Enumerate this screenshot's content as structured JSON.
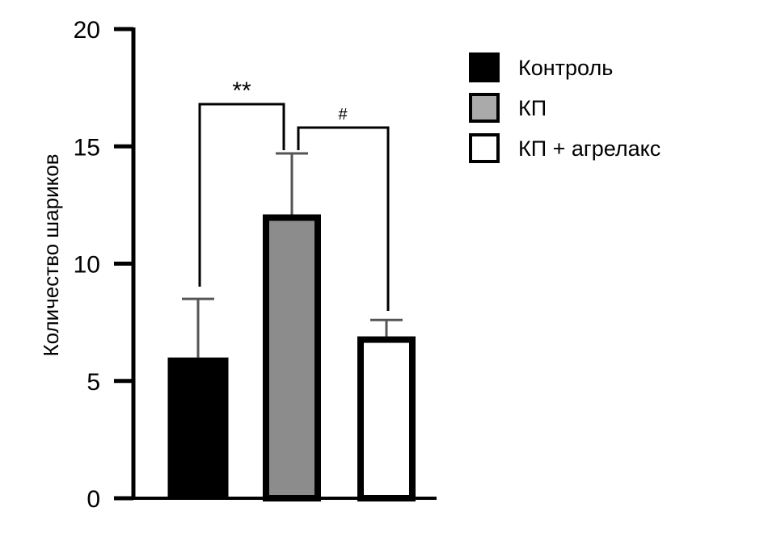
{
  "chart_data": {
    "type": "bar",
    "title": "",
    "xlabel": "",
    "ylabel": "Количество шариков",
    "ylim": [
      0,
      20
    ],
    "yticks": [
      0,
      5,
      10,
      15,
      20
    ],
    "grid": false,
    "legend_placement": "top-right",
    "categories": [
      "Контроль",
      "КП",
      "КП + агрелакс"
    ],
    "values": [
      6.0,
      12.1,
      6.9
    ],
    "error_upper": [
      8.5,
      14.7,
      7.6
    ],
    "colors": [
      "#000000",
      "#8c8c8c",
      "#ffffff"
    ],
    "legend": [
      {
        "label": "Контроль",
        "color": "#000000"
      },
      {
        "label": "КП",
        "color": "#aaaaaa"
      },
      {
        "label": "КП + агрелакс",
        "color": "#ffffff"
      }
    ],
    "annotations": [
      {
        "text": "**",
        "between": [
          "Контроль",
          "КП"
        ]
      },
      {
        "text": "#",
        "between": [
          "КП",
          "КП + агрелакс"
        ]
      }
    ]
  }
}
